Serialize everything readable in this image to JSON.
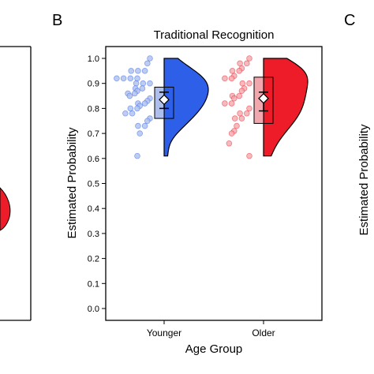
{
  "panel_letters": {
    "left": "B",
    "right": "C"
  },
  "colors": {
    "younger": "#2d5fe8",
    "younger_light": "#aebfee",
    "older": "#ee1c28",
    "older_light": "#f2a7ae",
    "axis": "#000000"
  },
  "chart_data": {
    "type": "raincloud",
    "title": "Traditional Recognition",
    "xlabel": "Age Group",
    "ylabel": "Estimated Probability",
    "ylim": [
      0,
      1.0
    ],
    "yticks": [
      "0.0",
      "0.1",
      "0.2",
      "0.3",
      "0.4",
      "0.5",
      "0.6",
      "0.7",
      "0.8",
      "0.9",
      "1.0"
    ],
    "categories": [
      "Younger",
      "Older"
    ],
    "groups": [
      {
        "name": "Younger",
        "points": [
          1.0,
          0.98,
          0.95,
          0.95,
          0.95,
          0.92,
          0.92,
          0.92,
          0.92,
          0.9,
          0.9,
          0.9,
          0.88,
          0.88,
          0.87,
          0.86,
          0.86,
          0.85,
          0.84,
          0.83,
          0.82,
          0.82,
          0.81,
          0.8,
          0.8,
          0.78,
          0.78,
          0.76,
          0.75,
          0.73,
          0.73,
          0.7,
          0.61
        ],
        "box": {
          "q1": 0.76,
          "median": 0.83,
          "q3": 0.885
        },
        "mean": 0.835,
        "ci": [
          0.8,
          0.865
        ],
        "density_range": [
          0.61,
          1.0
        ]
      },
      {
        "name": "Older",
        "points": [
          1.0,
          0.98,
          0.98,
          0.96,
          0.95,
          0.95,
          0.93,
          0.92,
          0.92,
          0.9,
          0.9,
          0.88,
          0.87,
          0.85,
          0.85,
          0.84,
          0.82,
          0.82,
          0.8,
          0.78,
          0.78,
          0.76,
          0.76,
          0.73,
          0.71,
          0.7,
          0.66,
          0.61
        ],
        "box": {
          "q1": 0.74,
          "median": 0.83,
          "q3": 0.925
        },
        "mean": 0.84,
        "ci": [
          0.79,
          0.865
        ],
        "density_range": [
          0.61,
          1.0
        ]
      }
    ]
  }
}
